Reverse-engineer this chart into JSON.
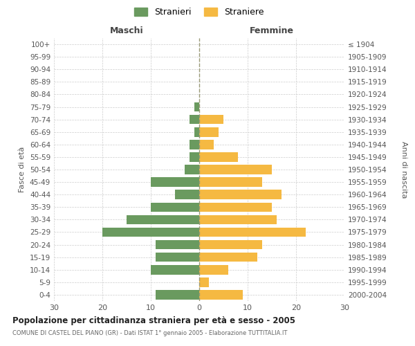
{
  "age_groups": [
    "0-4",
    "5-9",
    "10-14",
    "15-19",
    "20-24",
    "25-29",
    "30-34",
    "35-39",
    "40-44",
    "45-49",
    "50-54",
    "55-59",
    "60-64",
    "65-69",
    "70-74",
    "75-79",
    "80-84",
    "85-89",
    "90-94",
    "95-99",
    "100+"
  ],
  "birth_years": [
    "2000-2004",
    "1995-1999",
    "1990-1994",
    "1985-1989",
    "1980-1984",
    "1975-1979",
    "1970-1974",
    "1965-1969",
    "1960-1964",
    "1955-1959",
    "1950-1954",
    "1945-1949",
    "1940-1944",
    "1935-1939",
    "1930-1934",
    "1925-1929",
    "1920-1924",
    "1915-1919",
    "1910-1914",
    "1905-1909",
    "≤ 1904"
  ],
  "maschi": [
    9,
    0,
    10,
    9,
    9,
    20,
    15,
    10,
    5,
    10,
    3,
    2,
    2,
    1,
    2,
    1,
    0,
    0,
    0,
    0,
    0
  ],
  "femmine": [
    9,
    2,
    6,
    12,
    13,
    22,
    16,
    15,
    17,
    13,
    15,
    8,
    3,
    4,
    5,
    0,
    0,
    0,
    0,
    0,
    0
  ],
  "maschi_color": "#6a9a5f",
  "femmine_color": "#f5b942",
  "grid_color": "#cccccc",
  "dashed_line_color": "#999977",
  "title": "Popolazione per cittadinanza straniera per età e sesso - 2005",
  "subtitle": "COMUNE DI CASTEL DEL PIANO (GR) - Dati ISTAT 1° gennaio 2005 - Elaborazione TUTTITALIA.IT",
  "header_left": "Maschi",
  "header_right": "Femmine",
  "ylabel_left": "Fasce di età",
  "ylabel_right": "Anni di nascita",
  "xlim": 30,
  "legend_labels": [
    "Stranieri",
    "Straniere"
  ],
  "background_color": "#ffffff",
  "bar_height": 0.75
}
